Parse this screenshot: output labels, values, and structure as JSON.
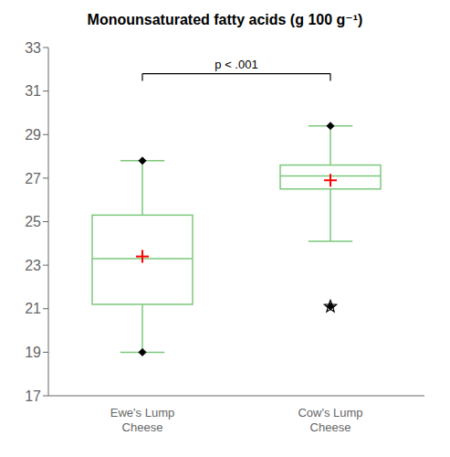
{
  "chart_data": {
    "type": "box",
    "title": "Monounsaturated fatty acids (g 100 g⁻¹)",
    "categories": [
      "Ewe's Lump\nCheese",
      "Cow's Lump\nCheese"
    ],
    "boxes": [
      {
        "q1": 21.2,
        "median": 23.3,
        "q3": 25.3,
        "mean": 23.4,
        "whisker_low": 19.0,
        "whisker_high": 27.8,
        "flier_low": 19.0,
        "flier_high": 27.8
      },
      {
        "q1": 26.5,
        "median": 27.1,
        "q3": 27.6,
        "mean": 26.9,
        "whisker_low": 24.1,
        "whisker_high": 29.4,
        "flier_low": 21.1,
        "flier_high": 29.4
      }
    ],
    "color": "#7dc87d",
    "mean": {
      "color": "red",
      "marker": "plus"
    },
    "fliers": {
      "color": "black",
      "marker": "diamond"
    },
    "outliers": {
      "color": "black",
      "marker": "star",
      "values": [
        null,
        21.1
      ]
    },
    "annotations": [
      {
        "text": "p < .001",
        "y": 31.8
      }
    ],
    "ylim": [
      17,
      33
    ],
    "yticks": [
      17,
      19,
      21,
      23,
      25,
      27,
      29,
      31,
      33
    ],
    "grid": false
  }
}
